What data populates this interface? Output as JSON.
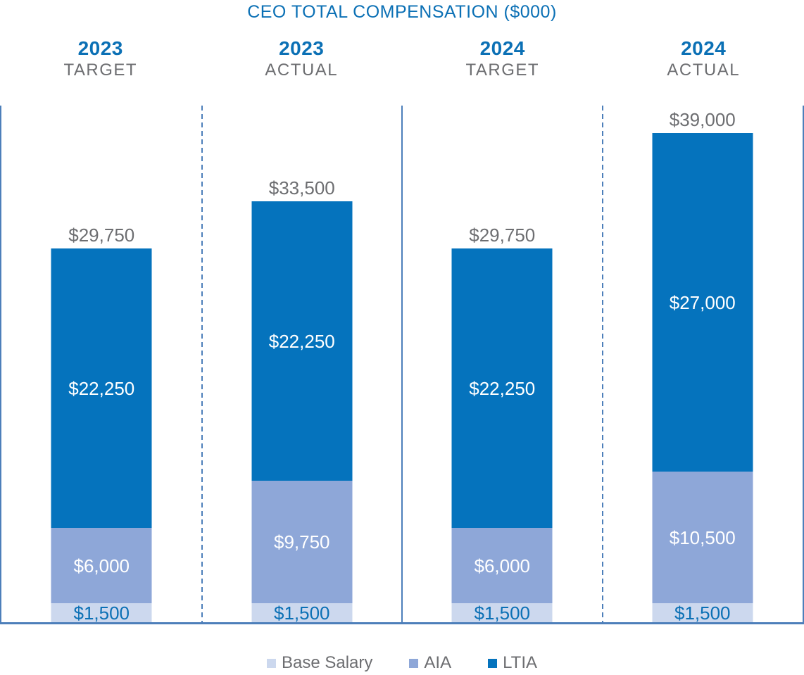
{
  "title": "CEO TOTAL COMPENSATION ($000)",
  "colors": {
    "title_blue": "#0b70b5",
    "year_blue": "#0b70b5",
    "label_gray": "#6d6e71",
    "axis_line": "#4d7fba",
    "base_salary_fill": "#ccd8ee",
    "aia_fill": "#8ea7d8",
    "ltia_fill": "#0573bd",
    "value_on_dark": "#ffffff",
    "value_on_light": "#0b70b5"
  },
  "chart_data": {
    "type": "bar",
    "stacked": true,
    "unit": "$000",
    "title": "CEO TOTAL COMPENSATION ($000)",
    "categories": [
      {
        "year": "2023",
        "label": "TARGET"
      },
      {
        "year": "2023",
        "label": "ACTUAL"
      },
      {
        "year": "2024",
        "label": "TARGET"
      },
      {
        "year": "2024",
        "label": "ACTUAL"
      }
    ],
    "series": [
      {
        "name": "Base Salary",
        "values": [
          1500,
          1500,
          1500,
          1500
        ],
        "color": "#ccd8ee",
        "label_color": "#0b70b5"
      },
      {
        "name": "AIA",
        "values": [
          6000,
          9750,
          6000,
          10500
        ],
        "color": "#8ea7d8",
        "label_color": "#ffffff"
      },
      {
        "name": "LTIA",
        "values": [
          22250,
          22250,
          22250,
          27000
        ],
        "color": "#0573bd",
        "label_color": "#ffffff"
      }
    ],
    "totals": [
      29750,
      33500,
      29750,
      39000
    ],
    "total_labels": [
      "$29,750",
      "$33,500",
      "$29,750",
      "$39,000"
    ],
    "segment_labels": [
      [
        "$1,500",
        "$6,000",
        "$22,250"
      ],
      [
        "$1,500",
        "$9,750",
        "$22,250"
      ],
      [
        "$1,500",
        "$6,000",
        "$22,250"
      ],
      [
        "$1,500",
        "$10,500",
        "$27,000"
      ]
    ],
    "legend": [
      {
        "label": "Base Salary",
        "color": "#ccd8ee"
      },
      {
        "label": "AIA",
        "color": "#8ea7d8"
      },
      {
        "label": "LTIA",
        "color": "#0573bd"
      }
    ],
    "legend_position": "bottom",
    "ylim": [
      0,
      39000
    ],
    "grid": false
  }
}
